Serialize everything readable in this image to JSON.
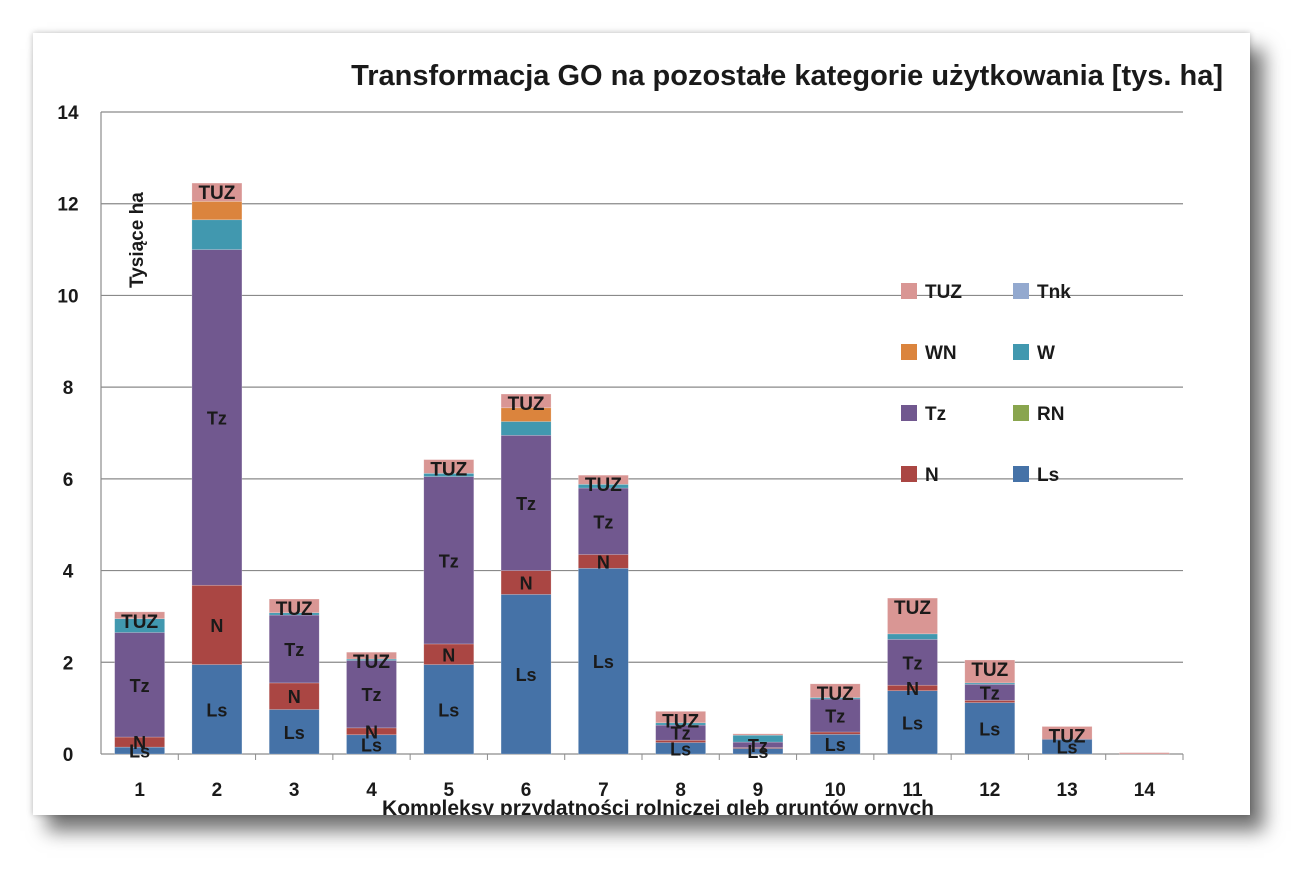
{
  "chart_data": {
    "type": "bar",
    "stacked": true,
    "title": "Transformacja GO na pozostałe kategorie użytkowania [tys. ha]",
    "xlabel": "Kompleksy przydatności rolniczej gleb gruntów ornych",
    "ylabel": "Tysiące ha",
    "ylim": [
      0,
      14
    ],
    "yticks": [
      0,
      2,
      4,
      6,
      8,
      10,
      12,
      14
    ],
    "grid": true,
    "legend_position": "right",
    "categories": [
      "1",
      "2",
      "3",
      "4",
      "5",
      "6",
      "7",
      "8",
      "9",
      "10",
      "11",
      "12",
      "13",
      "14"
    ],
    "series": [
      {
        "name": "Ls",
        "color": "#4572A7",
        "values": [
          0.15,
          1.95,
          0.97,
          0.42,
          1.95,
          3.48,
          4.05,
          0.25,
          0.12,
          0.43,
          1.38,
          1.12,
          0.32,
          0.0
        ]
      },
      {
        "name": "N",
        "color": "#AA4643",
        "values": [
          0.22,
          1.73,
          0.58,
          0.15,
          0.45,
          0.52,
          0.3,
          0.05,
          0.02,
          0.05,
          0.12,
          0.05,
          0.02,
          0.0
        ]
      },
      {
        "name": "RN",
        "color": "#89A54E",
        "values": [
          0.0,
          0.0,
          0.0,
          0.0,
          0.0,
          0.0,
          0.0,
          0.0,
          0.0,
          0.0,
          0.0,
          0.0,
          0.0,
          0.0
        ]
      },
      {
        "name": "Tz",
        "color": "#71588F",
        "values": [
          2.28,
          7.32,
          1.48,
          1.47,
          3.65,
          2.95,
          1.45,
          0.33,
          0.12,
          0.72,
          1.0,
          0.35,
          0.0,
          0.0
        ]
      },
      {
        "name": "W",
        "color": "#4198AF",
        "values": [
          0.3,
          0.65,
          0.05,
          0.03,
          0.07,
          0.3,
          0.08,
          0.05,
          0.15,
          0.03,
          0.12,
          0.03,
          0.0,
          0.0
        ]
      },
      {
        "name": "Tnk",
        "color": "#93A9CF",
        "values": [
          0.0,
          0.0,
          0.0,
          0.0,
          0.0,
          0.0,
          0.0,
          0.0,
          0.0,
          0.0,
          0.0,
          0.0,
          0.0,
          0.0
        ]
      },
      {
        "name": "WN",
        "color": "#DB843D",
        "values": [
          0.0,
          0.4,
          0.0,
          0.0,
          0.0,
          0.3,
          0.0,
          0.0,
          0.0,
          0.0,
          0.0,
          0.0,
          0.0,
          0.0
        ]
      },
      {
        "name": "TUZ",
        "color": "#D99694",
        "values": [
          0.15,
          0.4,
          0.3,
          0.15,
          0.3,
          0.3,
          0.2,
          0.25,
          0.03,
          0.3,
          0.78,
          0.5,
          0.26,
          0.03
        ]
      }
    ],
    "segment_labels": [
      {
        "category": "1",
        "labels": [
          "Ls",
          "N",
          "Tz",
          "TUZ"
        ]
      },
      {
        "category": "2",
        "labels": [
          "Ls",
          "N",
          "Tz",
          "TUZ"
        ]
      },
      {
        "category": "3",
        "labels": [
          "Ls",
          "N",
          "Tz",
          "TUZ"
        ]
      },
      {
        "category": "4",
        "labels": [
          "Ls",
          "N",
          "Tz",
          "TUZ"
        ]
      },
      {
        "category": "5",
        "labels": [
          "Ls",
          "N",
          "Tz",
          "TUZ"
        ]
      },
      {
        "category": "6",
        "labels": [
          "Ls",
          "N",
          "Tz",
          "TUZ"
        ]
      },
      {
        "category": "7",
        "labels": [
          "Ls",
          "N",
          "Tz",
          "TUZ"
        ]
      },
      {
        "category": "8",
        "labels": [
          "Ls",
          "Tz",
          "TUZ"
        ]
      },
      {
        "category": "9",
        "labels": [
          "Ls",
          "Tz"
        ]
      },
      {
        "category": "10",
        "labels": [
          "Ls",
          "Tz",
          "TUZ"
        ]
      },
      {
        "category": "11",
        "labels": [
          "Ls",
          "N",
          "Tz",
          "TUZ"
        ]
      },
      {
        "category": "12",
        "labels": [
          "Ls",
          "Tz",
          "TUZ"
        ]
      },
      {
        "category": "13",
        "labels": [
          "Ls",
          "TUZ"
        ]
      }
    ],
    "legend_order": [
      "TUZ",
      "Tnk",
      "WN",
      "W",
      "Tz",
      "RN",
      "N",
      "Ls"
    ]
  }
}
